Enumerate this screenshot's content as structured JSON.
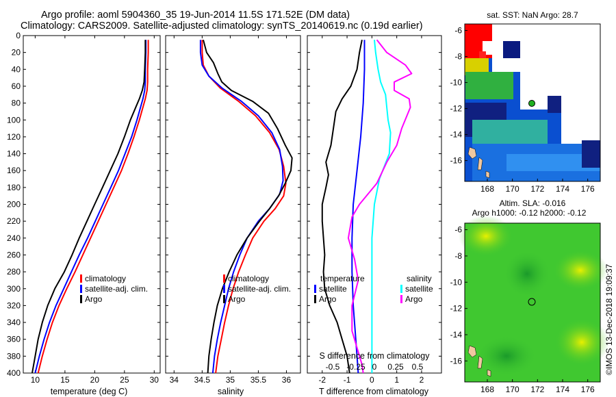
{
  "header": {
    "line1": "Argo profile: aoml 5904360_35 19-Jun-2014 11.5S 171.52E (DM data)",
    "line2": "Climatology: CARS2009. Satellite-adjusted climatology: synTS_20140619.nc (0.19d earlier)"
  },
  "colors": {
    "climatology": "#ff0000",
    "satellite": "#0000ff",
    "argo": "#000000",
    "cyan": "#00ffff",
    "magenta": "#ff00ff"
  },
  "chart_data": [
    {
      "id": "temperature",
      "type": "line",
      "xlabel": "temperature (deg C)",
      "ylabel": "",
      "xlim": [
        8,
        31
      ],
      "ylim": [
        400,
        0
      ],
      "xticks": [
        10,
        15,
        20,
        25,
        30
      ],
      "yticks": [
        0,
        20,
        40,
        60,
        80,
        100,
        120,
        140,
        160,
        180,
        200,
        220,
        240,
        260,
        280,
        300,
        320,
        340,
        360,
        380,
        400
      ],
      "legend": [
        "climatology",
        "satellite-adj. clim.",
        "Argo"
      ],
      "series": [
        {
          "name": "climatology",
          "color": "red",
          "points": [
            [
              29.0,
              5
            ],
            [
              29.0,
              20
            ],
            [
              28.9,
              40
            ],
            [
              28.9,
              55
            ],
            [
              28.8,
              65
            ],
            [
              28.5,
              75
            ],
            [
              28.1,
              85
            ],
            [
              27.5,
              100
            ],
            [
              26.6,
              120
            ],
            [
              25.6,
              140
            ],
            [
              24.5,
              160
            ],
            [
              23.2,
              180
            ],
            [
              21.9,
              200
            ],
            [
              20.6,
              220
            ],
            [
              19.3,
              240
            ],
            [
              18.0,
              260
            ],
            [
              16.7,
              280
            ],
            [
              15.3,
              300
            ],
            [
              14.0,
              320
            ],
            [
              12.9,
              340
            ],
            [
              12.0,
              360
            ],
            [
              11.2,
              380
            ],
            [
              10.5,
              400
            ]
          ]
        },
        {
          "name": "satellite-adj. clim.",
          "color": "blue",
          "points": [
            [
              28.6,
              5
            ],
            [
              28.6,
              20
            ],
            [
              28.5,
              40
            ],
            [
              28.5,
              55
            ],
            [
              28.4,
              65
            ],
            [
              28.1,
              75
            ],
            [
              27.7,
              85
            ],
            [
              27.1,
              100
            ],
            [
              26.2,
              120
            ],
            [
              25.1,
              140
            ],
            [
              24.0,
              160
            ],
            [
              22.7,
              180
            ],
            [
              21.4,
              200
            ],
            [
              20.1,
              220
            ],
            [
              18.8,
              240
            ],
            [
              17.4,
              260
            ],
            [
              16.1,
              280
            ],
            [
              14.8,
              300
            ],
            [
              13.5,
              320
            ],
            [
              12.4,
              340
            ],
            [
              11.5,
              360
            ],
            [
              10.7,
              380
            ],
            [
              10.0,
              400
            ]
          ]
        },
        {
          "name": "Argo",
          "color": "black",
          "points": [
            [
              28.5,
              5
            ],
            [
              28.5,
              20
            ],
            [
              28.4,
              40
            ],
            [
              28.3,
              55
            ],
            [
              28.0,
              65
            ],
            [
              27.5,
              75
            ],
            [
              26.9,
              85
            ],
            [
              26.0,
              100
            ],
            [
              25.0,
              120
            ],
            [
              23.9,
              140
            ],
            [
              22.6,
              160
            ],
            [
              21.3,
              180
            ],
            [
              20.0,
              200
            ],
            [
              18.7,
              220
            ],
            [
              17.4,
              240
            ],
            [
              16.2,
              260
            ],
            [
              14.9,
              280
            ],
            [
              13.3,
              300
            ],
            [
              12.1,
              320
            ],
            [
              11.2,
              340
            ],
            [
              10.5,
              360
            ],
            [
              10.0,
              380
            ],
            [
              9.5,
              400
            ]
          ]
        }
      ]
    },
    {
      "id": "salinity",
      "type": "line",
      "xlabel": "salinity",
      "xlim": [
        33.85,
        36.25
      ],
      "ylim": [
        400,
        0
      ],
      "xticks": [
        34,
        34.5,
        35,
        35.5,
        36
      ],
      "legend": [
        "climatology",
        "satellite-adj. clim.",
        "Argo"
      ],
      "series": [
        {
          "name": "climatology",
          "color": "red",
          "points": [
            [
              34.5,
              5
            ],
            [
              34.5,
              20
            ],
            [
              34.52,
              35
            ],
            [
              34.62,
              48
            ],
            [
              34.82,
              62
            ],
            [
              35.15,
              78
            ],
            [
              35.45,
              95
            ],
            [
              35.7,
              115
            ],
            [
              35.87,
              135
            ],
            [
              35.95,
              155
            ],
            [
              35.99,
              175
            ],
            [
              35.95,
              190
            ],
            [
              35.8,
              205
            ],
            [
              35.6,
              220
            ],
            [
              35.4,
              240
            ],
            [
              35.27,
              260
            ],
            [
              35.15,
              280
            ],
            [
              35.05,
              300
            ],
            [
              34.97,
              320
            ],
            [
              34.9,
              340
            ],
            [
              34.84,
              360
            ],
            [
              34.78,
              380
            ],
            [
              34.74,
              400
            ]
          ]
        },
        {
          "name": "satellite-adj. clim.",
          "color": "blue",
          "points": [
            [
              34.47,
              5
            ],
            [
              34.47,
              20
            ],
            [
              34.5,
              35
            ],
            [
              34.62,
              48
            ],
            [
              34.85,
              62
            ],
            [
              35.2,
              78
            ],
            [
              35.5,
              95
            ],
            [
              35.74,
              115
            ],
            [
              35.88,
              135
            ],
            [
              35.93,
              155
            ],
            [
              35.94,
              172
            ],
            [
              35.88,
              188
            ],
            [
              35.7,
              205
            ],
            [
              35.5,
              220
            ],
            [
              35.3,
              240
            ],
            [
              35.17,
              260
            ],
            [
              35.06,
              280
            ],
            [
              34.97,
              300
            ],
            [
              34.9,
              320
            ],
            [
              34.83,
              340
            ],
            [
              34.77,
              360
            ],
            [
              34.72,
              380
            ],
            [
              34.69,
              400
            ]
          ]
        },
        {
          "name": "Argo",
          "color": "black",
          "points": [
            [
              34.52,
              5
            ],
            [
              34.58,
              20
            ],
            [
              34.7,
              32
            ],
            [
              34.78,
              45
            ],
            [
              34.85,
              55
            ],
            [
              35.02,
              65
            ],
            [
              35.4,
              78
            ],
            [
              35.68,
              92
            ],
            [
              35.84,
              110
            ],
            [
              35.98,
              130
            ],
            [
              36.1,
              145
            ],
            [
              36.08,
              160
            ],
            [
              35.98,
              175
            ],
            [
              35.86,
              190
            ],
            [
              35.7,
              205
            ],
            [
              35.52,
              220
            ],
            [
              35.3,
              240
            ],
            [
              35.12,
              260
            ],
            [
              34.98,
              280
            ],
            [
              34.86,
              300
            ],
            [
              34.77,
              320
            ],
            [
              34.71,
              340
            ],
            [
              34.66,
              360
            ],
            [
              34.62,
              380
            ],
            [
              34.6,
              400
            ]
          ]
        }
      ]
    },
    {
      "id": "differences",
      "type": "line",
      "xlabel": "T difference from climatology",
      "xlabel_top": "S difference from climatology",
      "xlim": [
        -2.6,
        2.8
      ],
      "ylim": [
        400,
        0
      ],
      "xticks_T": [
        -2,
        -1,
        0,
        1,
        2
      ],
      "xticks_S_labels": [
        "-0.5",
        "-0.25",
        "0",
        "0.25",
        "0.5"
      ],
      "legend_left_title": "temperature",
      "legend_right_title": "salinity",
      "legend": [
        "satellite",
        "Argo"
      ],
      "series": [
        {
          "name": "T satellite",
          "color": "blue",
          "points": [
            [
              -0.3,
              5
            ],
            [
              -0.3,
              40
            ],
            [
              -0.35,
              80
            ],
            [
              -0.45,
              120
            ],
            [
              -0.6,
              160
            ],
            [
              -0.75,
              200
            ],
            [
              -0.8,
              240
            ],
            [
              -0.8,
              280
            ],
            [
              -0.75,
              320
            ],
            [
              -0.65,
              360
            ],
            [
              -0.55,
              400
            ]
          ]
        },
        {
          "name": "T Argo",
          "color": "black",
          "points": [
            [
              -0.4,
              5
            ],
            [
              -0.5,
              20
            ],
            [
              -0.6,
              40
            ],
            [
              -0.85,
              60
            ],
            [
              -1.2,
              75
            ],
            [
              -1.45,
              90
            ],
            [
              -1.55,
              110
            ],
            [
              -1.65,
              130
            ],
            [
              -1.85,
              150
            ],
            [
              -1.75,
              165
            ],
            [
              -1.85,
              180
            ],
            [
              -2.0,
              200
            ],
            [
              -2.0,
              220
            ],
            [
              -1.95,
              240
            ],
            [
              -1.9,
              260
            ],
            [
              -1.95,
              280
            ],
            [
              -1.9,
              300
            ],
            [
              -1.7,
              320
            ],
            [
              -1.4,
              340
            ],
            [
              -1.2,
              360
            ],
            [
              -1.0,
              380
            ],
            [
              -0.9,
              400
            ]
          ]
        },
        {
          "name": "S satellite",
          "color": "cyan",
          "points": [
            [
              0.1,
              5
            ],
            [
              0.15,
              20
            ],
            [
              0.25,
              40
            ],
            [
              0.35,
              55
            ],
            [
              0.55,
              70
            ],
            [
              0.6,
              85
            ],
            [
              0.65,
              100
            ],
            [
              0.75,
              115
            ],
            [
              0.7,
              140
            ],
            [
              0.3,
              170
            ],
            [
              0.1,
              200
            ],
            [
              0.0,
              240
            ],
            [
              0.0,
              280
            ],
            [
              0.0,
              320
            ],
            [
              0.0,
              360
            ],
            [
              0.0,
              400
            ]
          ]
        },
        {
          "name": "S Argo",
          "color": "magenta",
          "points": [
            [
              0.2,
              5
            ],
            [
              0.6,
              20
            ],
            [
              1.35,
              35
            ],
            [
              1.6,
              45
            ],
            [
              0.9,
              55
            ],
            [
              0.9,
              65
            ],
            [
              1.5,
              75
            ],
            [
              1.55,
              85
            ],
            [
              1.2,
              110
            ],
            [
              1.0,
              130
            ],
            [
              0.6,
              150
            ],
            [
              0.2,
              175
            ],
            [
              -0.5,
              200
            ],
            [
              -0.8,
              215
            ],
            [
              -0.95,
              240
            ],
            [
              -0.7,
              265
            ],
            [
              -0.55,
              290
            ],
            [
              -0.8,
              320
            ],
            [
              -0.8,
              350
            ],
            [
              -0.6,
              370
            ],
            [
              -0.4,
              390
            ],
            [
              -0.35,
              400
            ]
          ]
        }
      ]
    }
  ],
  "maps": {
    "sst": {
      "title": "sat. SST: NaN Argo: 28.7",
      "xticks": [
        "168",
        "170",
        "172",
        "174",
        "176"
      ],
      "yticks": [
        "-6",
        "-8",
        "-10",
        "-12",
        "-14",
        "-16"
      ]
    },
    "sla": {
      "title1": "Altim. SLA: -0.016",
      "title2": "Argo h1000: -0.12 h2000: -0.12",
      "xticks": [
        "168",
        "170",
        "172",
        "174",
        "176"
      ],
      "yticks": [
        "-6",
        "-8",
        "-10",
        "-12",
        "-14",
        "-16"
      ]
    }
  },
  "footer": {
    "credit": "©IMOS 13-Dec-2018 19:09:37"
  }
}
